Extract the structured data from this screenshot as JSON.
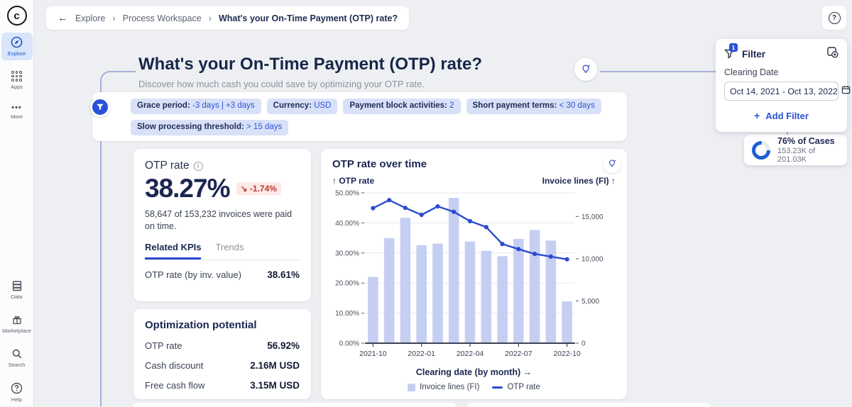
{
  "brand": {
    "logo_letter": "c"
  },
  "topbar": {
    "back_icon": "←",
    "breadcrumb": {
      "link1": "Explore",
      "link2": "Process Workspace",
      "separator": "›",
      "current": "What's your On-Time Payment (OTP) rate?"
    },
    "help_glyph": "?"
  },
  "sidebar": {
    "top_items": [
      {
        "label": "Explore",
        "active": true
      },
      {
        "label": "Apps",
        "active": false
      },
      {
        "label": "More",
        "active": false
      }
    ],
    "bottom_items": [
      {
        "label": "Data"
      },
      {
        "label": "Marketplace"
      },
      {
        "label": "Search"
      },
      {
        "label": "Help"
      }
    ]
  },
  "page": {
    "title": "What's your On-Time Payment (OTP) rate?",
    "subtitle": "Discover how much cash you could save by optimizing your OTP rate."
  },
  "settings_chips": [
    {
      "label": "Grace period:",
      "value": "-3 days | +3 days"
    },
    {
      "label": "Currency:",
      "value": "USD"
    },
    {
      "label": "Payment block activities:",
      "value": "2"
    },
    {
      "label": "Short payment terms:",
      "value": "< 30 days"
    },
    {
      "label": "Slow processing threshold:",
      "value": "> 15 days"
    }
  ],
  "otp_card": {
    "title": "OTP rate",
    "value": "38.27%",
    "change_icon": "↘",
    "change": "-1.74%",
    "description": "58,647 of 153,232 invoices were paid on time.",
    "tabs": [
      {
        "label": "Related KPIs"
      },
      {
        "label": "Trends"
      }
    ],
    "kpi_row": {
      "label": "OTP rate (by inv. value)",
      "value": "38.61%"
    }
  },
  "optimization_card": {
    "title": "Optimization potential",
    "rows": [
      {
        "label": "OTP rate",
        "value": "56.92%"
      },
      {
        "label": "Cash discount",
        "value": "2.16M USD"
      },
      {
        "label": "Free cash flow",
        "value": "3.15M USD"
      }
    ]
  },
  "chart_card": {
    "title": "OTP rate over time",
    "left_axis_label": "↑ OTP rate",
    "right_axis_label": "Invoice lines (FI) ↑",
    "x_axis_label": "Clearing date (by month) →",
    "legend": [
      {
        "label": "Invoice lines (FI)"
      },
      {
        "label": "OTP rate"
      }
    ]
  },
  "chart_data": {
    "type": "bar+line",
    "title": "OTP rate over time",
    "xlabel": "Clearing date (by month)",
    "categories": [
      "2021-10",
      "2021-11",
      "2021-12",
      "2022-01",
      "2022-02",
      "2022-03",
      "2022-04",
      "2022-05",
      "2022-06",
      "2022-07",
      "2022-08",
      "2022-09",
      "2022-10"
    ],
    "series": [
      {
        "name": "Invoice lines (FI)",
        "type": "bar",
        "axis": "right",
        "values": [
          7850,
          12450,
          14850,
          11600,
          11800,
          17200,
          12050,
          10950,
          10300,
          12350,
          13400,
          12150,
          4950
        ]
      },
      {
        "name": "OTP rate",
        "type": "line",
        "axis": "left",
        "unit": "%",
        "values": [
          44.9,
          47.6,
          45.0,
          42.7,
          45.5,
          43.7,
          40.6,
          38.6,
          33.0,
          31.3,
          29.7,
          28.8,
          27.9
        ]
      }
    ],
    "left_axis": {
      "min": 0,
      "max": 50,
      "ticks": [
        0,
        10,
        20,
        30,
        40,
        50
      ],
      "format": "percent"
    },
    "right_axis": {
      "min": 0,
      "max": 17800,
      "ticks": [
        0,
        5000,
        10000,
        15000
      ],
      "format": "thousands"
    },
    "x_tick_indices": [
      0,
      3,
      6,
      9,
      12
    ],
    "grid": true,
    "legend_position": "bottom",
    "colors": {
      "bar": "#c5cff2",
      "line": "#2b4bd0"
    }
  },
  "filter_panel": {
    "title": "Filter",
    "badge": "1",
    "field_label": "Clearing Date",
    "field_value": "Oct 14, 2021 - Oct 13, 2022",
    "add_plus": "+",
    "add_label": "Add Filter"
  },
  "cases_card": {
    "percent": 76,
    "title": "76% of Cases",
    "subtitle": "153.23K of 201.03K"
  }
}
